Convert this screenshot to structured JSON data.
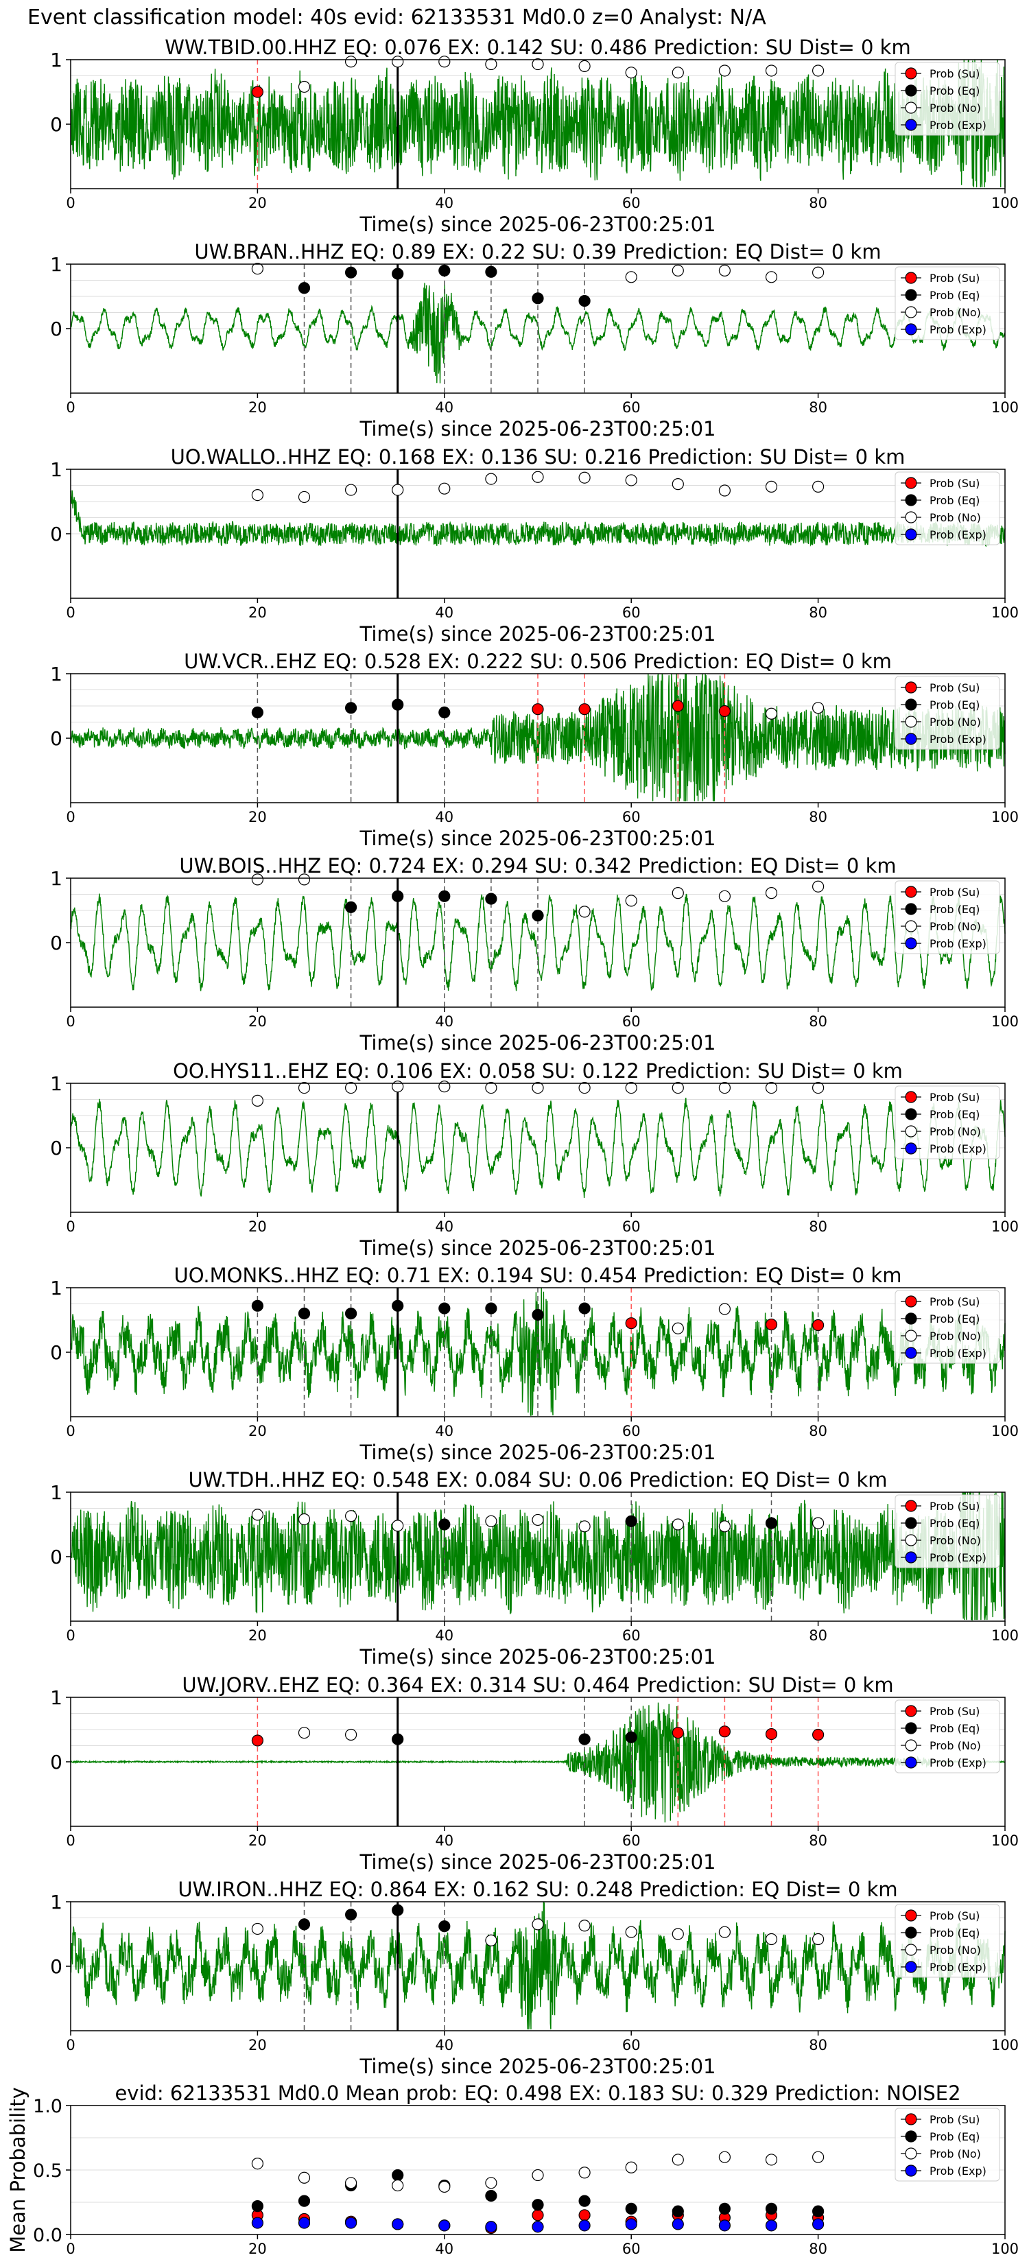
{
  "figure": {
    "title": "Event classification model: 40s evid: 62133531 Md0.0 z=0 Analyst: N/A",
    "xlabel": "Time(s) since 2025-06-23T00:25:01",
    "legend": [
      "Prob (Su)",
      "Prob (Eq)",
      "Prob (No)",
      "Prob (Exp)"
    ],
    "colors": {
      "su": "#ff0000",
      "eq": "#000000",
      "no": "#ffffff",
      "exp": "#0000ff",
      "trace": "#008000",
      "su_line": "#ff5555",
      "eq_line": "#555555",
      "event_line": "#000000"
    }
  },
  "chart_data": [
    {
      "type": "line",
      "title": "WW.TBID.00.HHZ   EQ: 0.076  EX: 0.142  SU: 0.486   Prediction: SU    Dist= 0 km",
      "xlim": [
        0,
        100
      ],
      "ylim": [
        -1,
        1
      ],
      "xticks": [
        0,
        20,
        40,
        60,
        80,
        100
      ],
      "yticks": [
        0,
        1
      ],
      "event_time": 35,
      "trace": {
        "style": "noisy",
        "seed": 11
      },
      "points": [
        [
          20,
          0.5,
          "su"
        ],
        [
          25,
          0.58,
          "no"
        ],
        [
          30,
          0.97,
          "no"
        ],
        [
          35,
          0.97,
          "no"
        ],
        [
          40,
          0.97,
          "no"
        ],
        [
          45,
          0.93,
          "no"
        ],
        [
          50,
          0.93,
          "no"
        ],
        [
          55,
          0.9,
          "no"
        ],
        [
          60,
          0.8,
          "no"
        ],
        [
          65,
          0.8,
          "no"
        ],
        [
          70,
          0.83,
          "no"
        ],
        [
          75,
          0.83,
          "no"
        ],
        [
          80,
          0.83,
          "no"
        ]
      ],
      "vlines": [
        [
          20,
          "su"
        ]
      ]
    },
    {
      "type": "line",
      "title": "UW.BRAN..HHZ   EQ: 0.89  EX: 0.22  SU: 0.39   Prediction: EQ    Dist= 0 km",
      "xlim": [
        0,
        100
      ],
      "ylim": [
        -1,
        1
      ],
      "xticks": [
        0,
        20,
        40,
        60,
        80,
        100
      ],
      "yticks": [
        0,
        1
      ],
      "event_time": 35,
      "trace": {
        "style": "wavy",
        "seed": 23
      },
      "points": [
        [
          20,
          0.93,
          "no"
        ],
        [
          25,
          0.63,
          "eq"
        ],
        [
          30,
          0.87,
          "eq"
        ],
        [
          35,
          0.85,
          "eq"
        ],
        [
          40,
          0.9,
          "eq"
        ],
        [
          45,
          0.88,
          "eq"
        ],
        [
          50,
          0.47,
          "eq"
        ],
        [
          55,
          0.43,
          "eq"
        ],
        [
          60,
          0.8,
          "no"
        ],
        [
          65,
          0.9,
          "no"
        ],
        [
          70,
          0.9,
          "no"
        ],
        [
          75,
          0.8,
          "no"
        ],
        [
          80,
          0.87,
          "no"
        ]
      ],
      "vlines": [
        [
          25,
          "eq"
        ],
        [
          30,
          "eq"
        ],
        [
          40,
          "eq"
        ],
        [
          45,
          "eq"
        ],
        [
          50,
          "eq"
        ],
        [
          55,
          "eq"
        ]
      ]
    },
    {
      "type": "line",
      "title": "UO.WALLO..HHZ   EQ: 0.168  EX: 0.136  SU: 0.216   Prediction: SU    Dist= 0 km",
      "xlim": [
        0,
        100
      ],
      "ylim": [
        -1,
        1
      ],
      "xticks": [
        0,
        20,
        40,
        60,
        80,
        100
      ],
      "yticks": [
        0,
        1
      ],
      "event_time": 35,
      "trace": {
        "style": "flat",
        "seed": 37
      },
      "points": [
        [
          20,
          0.6,
          "no"
        ],
        [
          25,
          0.57,
          "no"
        ],
        [
          30,
          0.68,
          "no"
        ],
        [
          35,
          0.68,
          "no"
        ],
        [
          40,
          0.7,
          "no"
        ],
        [
          45,
          0.85,
          "no"
        ],
        [
          50,
          0.88,
          "no"
        ],
        [
          55,
          0.87,
          "no"
        ],
        [
          60,
          0.83,
          "no"
        ],
        [
          65,
          0.77,
          "no"
        ],
        [
          70,
          0.67,
          "no"
        ],
        [
          75,
          0.73,
          "no"
        ],
        [
          80,
          0.73,
          "no"
        ]
      ],
      "vlines": []
    },
    {
      "type": "line",
      "title": "UW.VCR..EHZ   EQ: 0.528  EX: 0.222  SU: 0.506   Prediction: EQ    Dist= 0 km",
      "xlim": [
        0,
        100
      ],
      "ylim": [
        -1,
        1
      ],
      "xticks": [
        0,
        20,
        40,
        60,
        80,
        100
      ],
      "yticks": [
        0,
        1
      ],
      "event_time": 35,
      "trace": {
        "style": "burst",
        "seed": 41
      },
      "points": [
        [
          20,
          0.4,
          "eq"
        ],
        [
          30,
          0.47,
          "eq"
        ],
        [
          35,
          0.52,
          "eq"
        ],
        [
          40,
          0.4,
          "eq"
        ],
        [
          50,
          0.45,
          "su"
        ],
        [
          55,
          0.45,
          "su"
        ],
        [
          65,
          0.5,
          "su"
        ],
        [
          70,
          0.42,
          "su"
        ],
        [
          75,
          0.38,
          "no"
        ],
        [
          80,
          0.47,
          "no"
        ]
      ],
      "vlines": [
        [
          20,
          "eq"
        ],
        [
          30,
          "eq"
        ],
        [
          40,
          "eq"
        ],
        [
          50,
          "su"
        ],
        [
          55,
          "su"
        ],
        [
          65,
          "su"
        ],
        [
          70,
          "su"
        ]
      ]
    },
    {
      "type": "line",
      "title": "UW.BOIS..HHZ   EQ: 0.724  EX: 0.294  SU: 0.342   Prediction: EQ    Dist= 0 km",
      "xlim": [
        0,
        100
      ],
      "ylim": [
        -1,
        1
      ],
      "xticks": [
        0,
        20,
        40,
        60,
        80,
        100
      ],
      "yticks": [
        0,
        1
      ],
      "event_time": 35,
      "trace": {
        "style": "big_wavy",
        "seed": 53
      },
      "points": [
        [
          20,
          0.98,
          "no"
        ],
        [
          25,
          0.98,
          "no"
        ],
        [
          30,
          0.55,
          "eq"
        ],
        [
          35,
          0.72,
          "eq"
        ],
        [
          40,
          0.72,
          "eq"
        ],
        [
          45,
          0.68,
          "eq"
        ],
        [
          50,
          0.42,
          "eq"
        ],
        [
          55,
          0.48,
          "no"
        ],
        [
          60,
          0.65,
          "no"
        ],
        [
          65,
          0.77,
          "no"
        ],
        [
          70,
          0.72,
          "no"
        ],
        [
          75,
          0.77,
          "no"
        ],
        [
          80,
          0.87,
          "no"
        ]
      ],
      "vlines": [
        [
          30,
          "eq"
        ],
        [
          40,
          "eq"
        ],
        [
          45,
          "eq"
        ],
        [
          50,
          "eq"
        ]
      ]
    },
    {
      "type": "line",
      "title": "OO.HYS11..EHZ   EQ: 0.106  EX: 0.058  SU: 0.122   Prediction: SU    Dist= 0 km",
      "xlim": [
        0,
        100
      ],
      "ylim": [
        -1,
        1
      ],
      "xticks": [
        0,
        20,
        40,
        60,
        80,
        100
      ],
      "yticks": [
        0,
        1
      ],
      "event_time": 35,
      "trace": {
        "style": "big_wavy",
        "seed": 67
      },
      "points": [
        [
          20,
          0.73,
          "no"
        ],
        [
          25,
          0.93,
          "no"
        ],
        [
          30,
          0.93,
          "no"
        ],
        [
          35,
          0.95,
          "no"
        ],
        [
          40,
          0.95,
          "no"
        ],
        [
          45,
          0.93,
          "no"
        ],
        [
          50,
          0.93,
          "no"
        ],
        [
          55,
          0.93,
          "no"
        ],
        [
          60,
          0.93,
          "no"
        ],
        [
          65,
          0.93,
          "no"
        ],
        [
          70,
          0.93,
          "no"
        ],
        [
          75,
          0.93,
          "no"
        ],
        [
          80,
          0.93,
          "no"
        ]
      ],
      "vlines": []
    },
    {
      "type": "line",
      "title": "UO.MONKS..HHZ   EQ: 0.71  EX: 0.194  SU: 0.454   Prediction: EQ    Dist= 0 km",
      "xlim": [
        0,
        100
      ],
      "ylim": [
        -1,
        1
      ],
      "xticks": [
        0,
        20,
        40,
        60,
        80,
        100
      ],
      "yticks": [
        0,
        1
      ],
      "event_time": 35,
      "trace": {
        "style": "noisy_wavy",
        "seed": 79
      },
      "points": [
        [
          20,
          0.72,
          "eq"
        ],
        [
          25,
          0.6,
          "eq"
        ],
        [
          30,
          0.6,
          "eq"
        ],
        [
          35,
          0.72,
          "eq"
        ],
        [
          40,
          0.68,
          "eq"
        ],
        [
          45,
          0.68,
          "eq"
        ],
        [
          50,
          0.58,
          "eq"
        ],
        [
          55,
          0.68,
          "eq"
        ],
        [
          60,
          0.45,
          "su"
        ],
        [
          65,
          0.37,
          "no"
        ],
        [
          70,
          0.67,
          "no"
        ],
        [
          75,
          0.43,
          "su"
        ],
        [
          80,
          0.42,
          "su"
        ]
      ],
      "vlines": [
        [
          20,
          "eq"
        ],
        [
          25,
          "eq"
        ],
        [
          30,
          "eq"
        ],
        [
          40,
          "eq"
        ],
        [
          45,
          "eq"
        ],
        [
          50,
          "eq"
        ],
        [
          55,
          "eq"
        ],
        [
          60,
          "su"
        ],
        [
          75,
          "eq"
        ],
        [
          80,
          "eq"
        ]
      ]
    },
    {
      "type": "line",
      "title": "UW.TDH..HHZ   EQ: 0.548  EX: 0.084  SU: 0.06   Prediction: EQ    Dist= 0 km",
      "xlim": [
        0,
        100
      ],
      "ylim": [
        -1,
        1
      ],
      "xticks": [
        0,
        20,
        40,
        60,
        80,
        100
      ],
      "yticks": [
        0,
        1
      ],
      "event_time": 35,
      "trace": {
        "style": "noisy",
        "seed": 83
      },
      "points": [
        [
          20,
          0.65,
          "no"
        ],
        [
          25,
          0.58,
          "no"
        ],
        [
          30,
          0.63,
          "no"
        ],
        [
          35,
          0.48,
          "no"
        ],
        [
          40,
          0.5,
          "eq"
        ],
        [
          45,
          0.55,
          "no"
        ],
        [
          50,
          0.57,
          "no"
        ],
        [
          55,
          0.47,
          "no"
        ],
        [
          60,
          0.55,
          "eq"
        ],
        [
          65,
          0.5,
          "no"
        ],
        [
          70,
          0.47,
          "no"
        ],
        [
          75,
          0.52,
          "eq"
        ],
        [
          80,
          0.52,
          "no"
        ]
      ],
      "vlines": [
        [
          40,
          "eq"
        ],
        [
          60,
          "eq"
        ],
        [
          75,
          "eq"
        ]
      ]
    },
    {
      "type": "line",
      "title": "UW.JORV..EHZ   EQ: 0.364  EX: 0.314  SU: 0.464   Prediction: SU    Dist= 0 km",
      "xlim": [
        0,
        100
      ],
      "ylim": [
        -1,
        1
      ],
      "xticks": [
        0,
        20,
        40,
        60,
        80,
        100
      ],
      "yticks": [
        0,
        1
      ],
      "event_time": 35,
      "trace": {
        "style": "quiet_burst",
        "seed": 97
      },
      "points": [
        [
          20,
          0.33,
          "su"
        ],
        [
          25,
          0.45,
          "no"
        ],
        [
          30,
          0.42,
          "no"
        ],
        [
          35,
          0.35,
          "eq"
        ],
        [
          55,
          0.35,
          "eq"
        ],
        [
          60,
          0.38,
          "eq"
        ],
        [
          65,
          0.45,
          "su"
        ],
        [
          70,
          0.47,
          "su"
        ],
        [
          75,
          0.43,
          "su"
        ],
        [
          80,
          0.42,
          "su"
        ]
      ],
      "vlines": [
        [
          20,
          "su"
        ],
        [
          55,
          "eq"
        ],
        [
          60,
          "eq"
        ],
        [
          65,
          "su"
        ],
        [
          70,
          "su"
        ],
        [
          75,
          "su"
        ],
        [
          80,
          "su"
        ]
      ]
    },
    {
      "type": "line",
      "title": "UW.IRON..HHZ   EQ: 0.864  EX: 0.162  SU: 0.248   Prediction: EQ    Dist= 0 km",
      "xlim": [
        0,
        100
      ],
      "ylim": [
        -1,
        1
      ],
      "xticks": [
        0,
        20,
        40,
        60,
        80,
        100
      ],
      "yticks": [
        0,
        1
      ],
      "event_time": 35,
      "trace": {
        "style": "noisy_wavy",
        "seed": 101
      },
      "points": [
        [
          20,
          0.58,
          "no"
        ],
        [
          25,
          0.65,
          "eq"
        ],
        [
          30,
          0.8,
          "eq"
        ],
        [
          35,
          0.87,
          "eq"
        ],
        [
          40,
          0.62,
          "eq"
        ],
        [
          45,
          0.4,
          "no"
        ],
        [
          50,
          0.65,
          "no"
        ],
        [
          55,
          0.63,
          "no"
        ],
        [
          60,
          0.53,
          "no"
        ],
        [
          65,
          0.5,
          "no"
        ],
        [
          70,
          0.53,
          "no"
        ],
        [
          75,
          0.42,
          "no"
        ],
        [
          80,
          0.42,
          "no"
        ]
      ],
      "vlines": [
        [
          25,
          "eq"
        ],
        [
          30,
          "eq"
        ],
        [
          40,
          "eq"
        ]
      ]
    },
    {
      "type": "scatter",
      "title": "evid: 62133531   Md0.0   Mean prob:   EQ: 0.498  EX: 0.183  SU: 0.329   Prediction: NOISE2",
      "ylabel": "Mean Probability",
      "xlim": [
        0,
        100
      ],
      "ylim": [
        0,
        1
      ],
      "xticks": [
        0,
        20,
        40,
        60,
        80,
        100
      ],
      "yticks": [
        0.0,
        0.5,
        1.0
      ],
      "ytick_labels": [
        "0.0",
        "0.5",
        "1.0"
      ],
      "series": [
        {
          "name": "Prob (Su)",
          "key": "su",
          "x": [
            20,
            25,
            30,
            35,
            40,
            45,
            50,
            55,
            60,
            65,
            70,
            75,
            80
          ],
          "y": [
            0.15,
            0.12,
            0.1,
            0.08,
            0.07,
            0.05,
            0.15,
            0.15,
            0.1,
            0.15,
            0.13,
            0.15,
            0.13
          ]
        },
        {
          "name": "Prob (Eq)",
          "key": "eq",
          "x": [
            20,
            25,
            30,
            35,
            40,
            45,
            50,
            55,
            60,
            65,
            70,
            75,
            80
          ],
          "y": [
            0.22,
            0.26,
            0.38,
            0.46,
            0.38,
            0.3,
            0.23,
            0.26,
            0.2,
            0.18,
            0.2,
            0.2,
            0.18
          ]
        },
        {
          "name": "Prob (No)",
          "key": "no",
          "x": [
            20,
            25,
            30,
            35,
            40,
            45,
            50,
            55,
            60,
            65,
            70,
            75,
            80
          ],
          "y": [
            0.55,
            0.44,
            0.4,
            0.38,
            0.37,
            0.4,
            0.46,
            0.48,
            0.52,
            0.58,
            0.6,
            0.58,
            0.6
          ]
        },
        {
          "name": "Prob (Exp)",
          "key": "exp",
          "x": [
            20,
            25,
            30,
            35,
            40,
            45,
            50,
            55,
            60,
            65,
            70,
            75,
            80
          ],
          "y": [
            0.09,
            0.09,
            0.09,
            0.08,
            0.07,
            0.06,
            0.06,
            0.07,
            0.08,
            0.08,
            0.07,
            0.07,
            0.08
          ]
        }
      ]
    }
  ]
}
